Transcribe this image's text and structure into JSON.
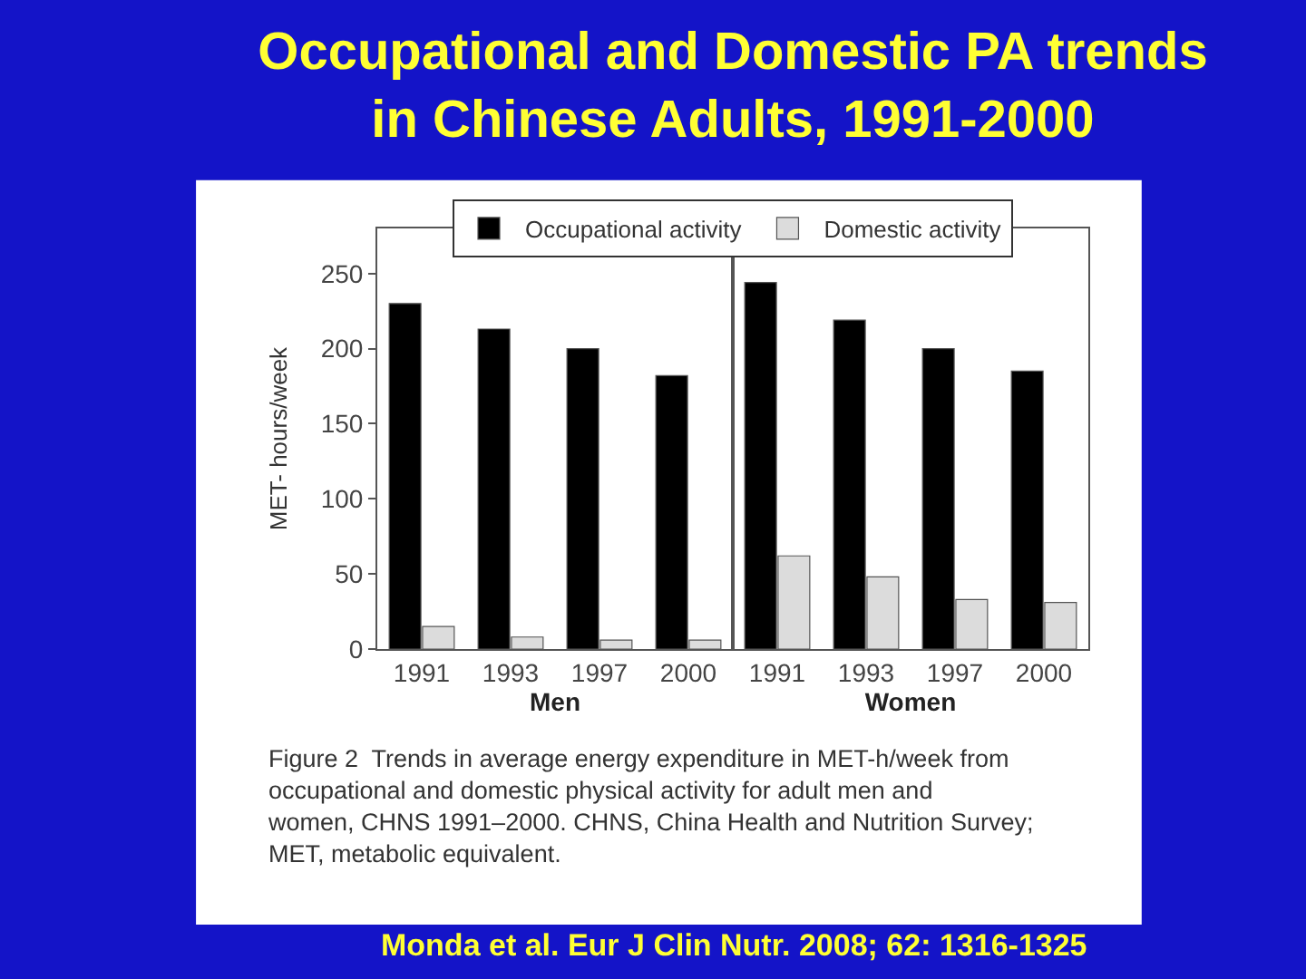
{
  "chart_data": [
    {
      "type": "bar",
      "title": "Occupational and Domestic PA trends in Chinese Adults, 1991-2000",
      "categories": [
        "1991",
        "1993",
        "1997",
        "2000"
      ],
      "xlabel": "Men",
      "ylabel": "MET- hours/week",
      "series": [
        {
          "name": "Occupational activity",
          "color": "#000000",
          "values": [
            230,
            213,
            200,
            182
          ]
        },
        {
          "name": "Domestic activity",
          "color": "#dcdcdc",
          "values": [
            15,
            8,
            6,
            6
          ]
        }
      ],
      "ylim": [
        0,
        280
      ],
      "yticks": [
        0,
        50,
        100,
        150,
        200,
        250
      ],
      "legend": "top",
      "grid": false,
      "annotations": [
        "Figure 2  Trends in average energy expenditure in MET-h/week from occupational and domestic physical activity for adult men and women, CHNS 1991–2000. CHNS, China Health and Nutrition Survey; MET, metabolic equivalent.",
        "Monda et al. Eur J Clin Nutr. 2008; 62: 1316-1325"
      ]
    },
    {
      "type": "bar",
      "categories": [
        "1991",
        "1993",
        "1997",
        "2000"
      ],
      "xlabel": "Women",
      "series": [
        {
          "color": "#000000",
          "values": [
            244,
            219,
            200,
            185
          ]
        },
        {
          "color": "#dcdcdc",
          "values": [
            62,
            48,
            33,
            31
          ]
        }
      ],
      "ylim": [
        0,
        280
      ],
      "yticks": [
        0,
        50,
        100,
        150,
        200,
        250
      ],
      "tick_labels": "x",
      "grid": false
    }
  ]
}
